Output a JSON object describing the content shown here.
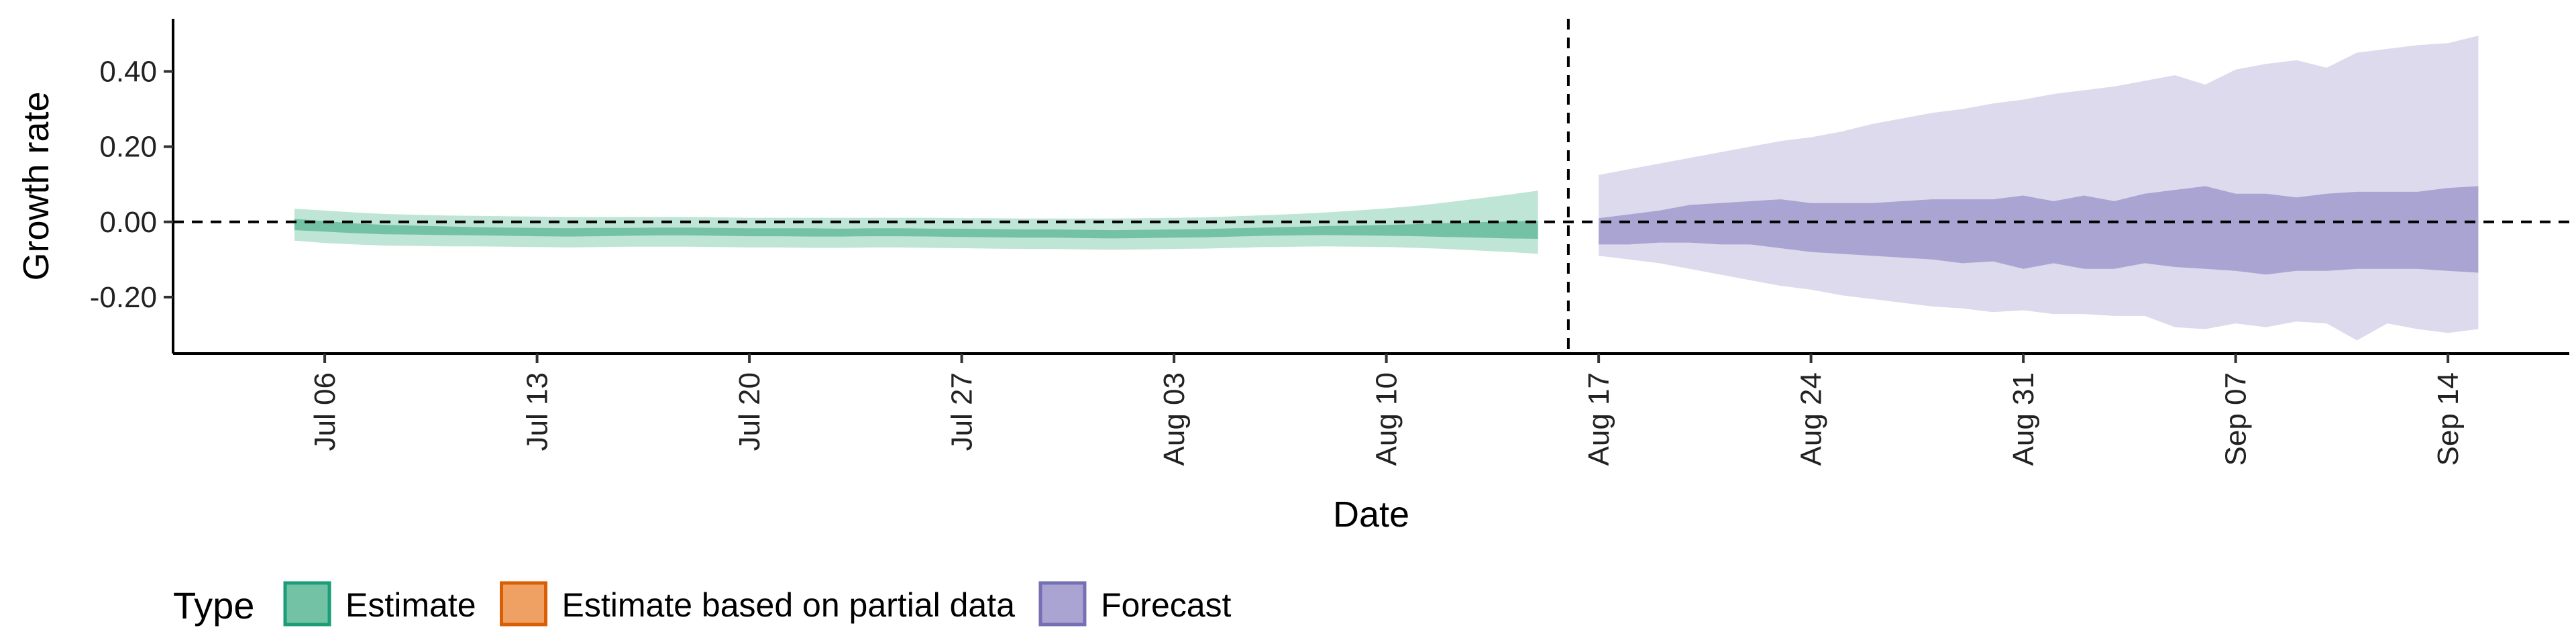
{
  "chart_data": {
    "type": "area",
    "xlabel": "Date",
    "ylabel": "Growth rate",
    "ylim": [
      -0.35,
      0.54
    ],
    "y_ticks": [
      -0.2,
      0.0,
      0.2,
      0.4
    ],
    "y_tick_labels": [
      "-0.20",
      "0.00",
      "0.20",
      "0.40"
    ],
    "x_range": [
      "2020-07-01",
      "2020-09-18"
    ],
    "x_ticks": [
      {
        "date": "2020-07-06",
        "label": "Jul 06"
      },
      {
        "date": "2020-07-13",
        "label": "Jul 13"
      },
      {
        "date": "2020-07-20",
        "label": "Jul 20"
      },
      {
        "date": "2020-07-27",
        "label": "Jul 27"
      },
      {
        "date": "2020-08-03",
        "label": "Aug 03"
      },
      {
        "date": "2020-08-10",
        "label": "Aug 10"
      },
      {
        "date": "2020-08-17",
        "label": "Aug 17"
      },
      {
        "date": "2020-08-24",
        "label": "Aug 24"
      },
      {
        "date": "2020-08-31",
        "label": "Aug 31"
      },
      {
        "date": "2020-09-07",
        "label": "Sep 07"
      },
      {
        "date": "2020-09-14",
        "label": "Sep 14"
      }
    ],
    "reference_lines": {
      "horizontal_y": 0.0,
      "vertical_date": "2020-08-16"
    },
    "legend": {
      "title": "Type",
      "placement": "bottom-left",
      "entries": [
        {
          "label": "Estimate",
          "fill": "#74c2a6",
          "stroke": "#1b9e77"
        },
        {
          "label": "Estimate based on partial data",
          "fill": "#efa063",
          "stroke": "#d95f02"
        },
        {
          "label": "Forecast",
          "fill": "#a9a4d2",
          "stroke": "#7570b3"
        }
      ]
    },
    "series": [
      {
        "type_key": "Estimate",
        "dark_color": "#74c2a6",
        "light_color": "#bfe5d6",
        "start_date": "2020-07-05",
        "end_date": "2020-08-15",
        "points": [
          [
            -0.05,
            -0.022,
            0.008,
            0.035
          ],
          [
            -0.056,
            -0.026,
            0.002,
            0.03
          ],
          [
            -0.06,
            -0.03,
            -0.004,
            0.025
          ],
          [
            -0.063,
            -0.033,
            -0.008,
            0.021
          ],
          [
            -0.064,
            -0.034,
            -0.01,
            0.019
          ],
          [
            -0.065,
            -0.035,
            -0.012,
            0.017
          ],
          [
            -0.065,
            -0.036,
            -0.014,
            0.016
          ],
          [
            -0.066,
            -0.037,
            -0.015,
            0.015
          ],
          [
            -0.067,
            -0.038,
            -0.016,
            0.014
          ],
          [
            -0.068,
            -0.039,
            -0.017,
            0.013
          ],
          [
            -0.067,
            -0.038,
            -0.016,
            0.013
          ],
          [
            -0.066,
            -0.037,
            -0.016,
            0.013
          ],
          [
            -0.066,
            -0.036,
            -0.015,
            0.013
          ],
          [
            -0.066,
            -0.036,
            -0.015,
            0.013
          ],
          [
            -0.067,
            -0.037,
            -0.016,
            0.012
          ],
          [
            -0.068,
            -0.038,
            -0.017,
            0.011
          ],
          [
            -0.068,
            -0.038,
            -0.017,
            0.011
          ],
          [
            -0.069,
            -0.039,
            -0.017,
            0.011
          ],
          [
            -0.069,
            -0.039,
            -0.018,
            0.011
          ],
          [
            -0.068,
            -0.038,
            -0.017,
            0.011
          ],
          [
            -0.068,
            -0.038,
            -0.017,
            0.011
          ],
          [
            -0.069,
            -0.039,
            -0.018,
            0.011
          ],
          [
            -0.07,
            -0.04,
            -0.018,
            0.01
          ],
          [
            -0.071,
            -0.041,
            -0.019,
            0.01
          ],
          [
            -0.072,
            -0.042,
            -0.02,
            0.009
          ],
          [
            -0.072,
            -0.042,
            -0.02,
            0.009
          ],
          [
            -0.073,
            -0.043,
            -0.021,
            0.009
          ],
          [
            -0.074,
            -0.044,
            -0.022,
            0.009
          ],
          [
            -0.073,
            -0.043,
            -0.021,
            0.01
          ],
          [
            -0.072,
            -0.042,
            -0.02,
            0.011
          ],
          [
            -0.071,
            -0.041,
            -0.019,
            0.012
          ],
          [
            -0.069,
            -0.039,
            -0.017,
            0.015
          ],
          [
            -0.067,
            -0.037,
            -0.015,
            0.018
          ],
          [
            -0.066,
            -0.036,
            -0.013,
            0.021
          ],
          [
            -0.065,
            -0.035,
            -0.011,
            0.025
          ],
          [
            -0.066,
            -0.036,
            -0.01,
            0.03
          ],
          [
            -0.067,
            -0.037,
            -0.008,
            0.036
          ],
          [
            -0.069,
            -0.038,
            -0.006,
            0.043
          ],
          [
            -0.072,
            -0.04,
            -0.003,
            0.052
          ],
          [
            -0.076,
            -0.042,
            -0.001,
            0.062
          ],
          [
            -0.08,
            -0.044,
            0.001,
            0.072
          ],
          [
            -0.085,
            -0.045,
            0.003,
            0.083
          ]
        ]
      },
      {
        "type_key": "Forecast",
        "dark_color": "#a9a4d2",
        "light_color": "#dcdaec",
        "start_date": "2020-08-17",
        "end_date": "2020-09-15",
        "points": [
          [
            -0.09,
            -0.06,
            0.01,
            0.125
          ],
          [
            -0.1,
            -0.06,
            0.02,
            0.14
          ],
          [
            -0.11,
            -0.055,
            0.03,
            0.155
          ],
          [
            -0.125,
            -0.055,
            0.045,
            0.17
          ],
          [
            -0.14,
            -0.06,
            0.05,
            0.185
          ],
          [
            -0.155,
            -0.06,
            0.055,
            0.2
          ],
          [
            -0.17,
            -0.07,
            0.06,
            0.215
          ],
          [
            -0.18,
            -0.08,
            0.05,
            0.225
          ],
          [
            -0.195,
            -0.085,
            0.05,
            0.24
          ],
          [
            -0.205,
            -0.09,
            0.05,
            0.26
          ],
          [
            -0.215,
            -0.095,
            0.055,
            0.275
          ],
          [
            -0.225,
            -0.1,
            0.06,
            0.29
          ],
          [
            -0.23,
            -0.11,
            0.06,
            0.3
          ],
          [
            -0.24,
            -0.105,
            0.06,
            0.315
          ],
          [
            -0.235,
            -0.125,
            0.07,
            0.325
          ],
          [
            -0.245,
            -0.11,
            0.055,
            0.34
          ],
          [
            -0.245,
            -0.125,
            0.07,
            0.35
          ],
          [
            -0.25,
            -0.125,
            0.055,
            0.36
          ],
          [
            -0.25,
            -0.11,
            0.075,
            0.375
          ],
          [
            -0.28,
            -0.12,
            0.085,
            0.39
          ],
          [
            -0.285,
            -0.125,
            0.095,
            0.365
          ],
          [
            -0.27,
            -0.13,
            0.075,
            0.405
          ],
          [
            -0.28,
            -0.14,
            0.075,
            0.42
          ],
          [
            -0.265,
            -0.13,
            0.065,
            0.43
          ],
          [
            -0.27,
            -0.13,
            0.075,
            0.41
          ],
          [
            -0.315,
            -0.125,
            0.08,
            0.45
          ],
          [
            -0.27,
            -0.125,
            0.08,
            0.46
          ],
          [
            -0.285,
            -0.125,
            0.08,
            0.47
          ],
          [
            -0.295,
            -0.13,
            0.09,
            0.475
          ],
          [
            -0.285,
            -0.135,
            0.095,
            0.495
          ]
        ]
      }
    ]
  }
}
